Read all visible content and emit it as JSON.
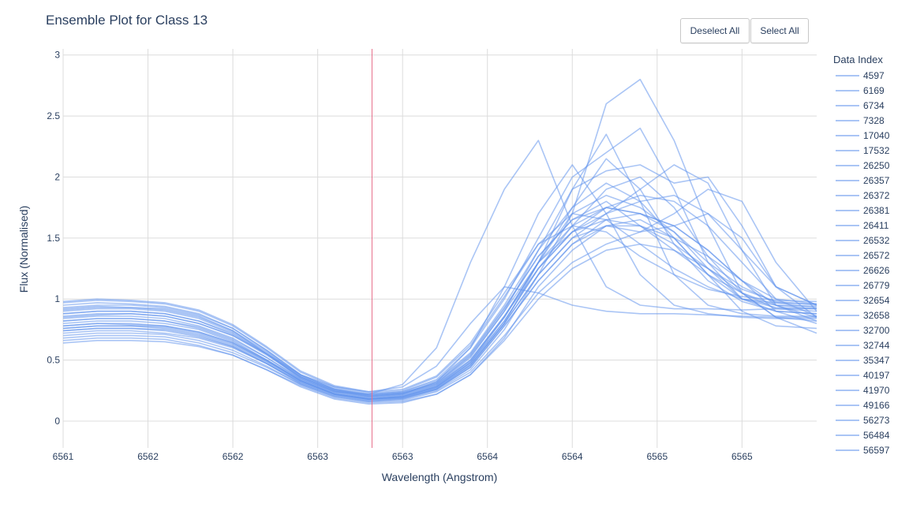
{
  "title": "Ensemble Plot for Class 13",
  "buttons": {
    "deselect_all": "Deselect All",
    "select_all": "Select All"
  },
  "legend": {
    "title": "Data Index",
    "items": [
      "4597",
      "6169",
      "6734",
      "7328",
      "17040",
      "17532",
      "26250",
      "26357",
      "26372",
      "26381",
      "26411",
      "26532",
      "26572",
      "26626",
      "26779",
      "32654",
      "32658",
      "32700",
      "32744",
      "35347",
      "40197",
      "41970",
      "49166",
      "56273",
      "56484",
      "56597"
    ]
  },
  "colors": {
    "series": "#6495ED",
    "vline": "#e8708c",
    "grid": "#dcdcdc",
    "text": "#2a3f5f"
  },
  "chart_data": {
    "type": "line",
    "title": "Ensemble Plot for Class 13",
    "xlabel": "Wavelength (Angstrom)",
    "ylabel": "Flux (Normalised)",
    "x_ticks": [
      {
        "value": 6561.0,
        "label": "6561"
      },
      {
        "value": 6561.5,
        "label": "6562"
      },
      {
        "value": 6562.0,
        "label": "6562"
      },
      {
        "value": 6562.5,
        "label": "6563"
      },
      {
        "value": 6563.0,
        "label": "6563"
      },
      {
        "value": 6563.5,
        "label": "6564"
      },
      {
        "value": 6564.0,
        "label": "6564"
      },
      {
        "value": 6564.5,
        "label": "6565"
      },
      {
        "value": 6565.0,
        "label": "6565"
      }
    ],
    "y_ticks": [
      {
        "value": 0,
        "label": "0"
      },
      {
        "value": 0.5,
        "label": "0.5"
      },
      {
        "value": 1,
        "label": "1"
      },
      {
        "value": 1.5,
        "label": "1.5"
      },
      {
        "value": 2,
        "label": "2"
      },
      {
        "value": 2.5,
        "label": "2.5"
      },
      {
        "value": 3,
        "label": "3"
      }
    ],
    "xlim": [
      6561.0,
      6565.44
    ],
    "ylim": [
      -0.22,
      3.05
    ],
    "grid": true,
    "legend_position": "right",
    "vertical_marker_x": 6562.82,
    "x": [
      6561.0,
      6561.2,
      6561.4,
      6561.6,
      6561.8,
      6562.0,
      6562.2,
      6562.4,
      6562.6,
      6562.8,
      6563.0,
      6563.2,
      6563.4,
      6563.6,
      6563.8,
      6564.0,
      6564.2,
      6564.4,
      6564.6,
      6564.8,
      6565.0,
      6565.2,
      6565.44
    ],
    "series": [
      {
        "values": [
          0.85,
          0.87,
          0.88,
          0.86,
          0.8,
          0.7,
          0.55,
          0.38,
          0.28,
          0.24,
          0.28,
          0.45,
          0.8,
          1.1,
          1.05,
          0.95,
          0.9,
          0.88,
          0.88,
          0.87,
          0.86,
          0.85,
          0.85
        ]
      },
      {
        "values": [
          0.92,
          0.94,
          0.93,
          0.92,
          0.86,
          0.74,
          0.55,
          0.35,
          0.24,
          0.22,
          0.3,
          0.6,
          1.3,
          1.9,
          2.3,
          1.6,
          1.1,
          0.95,
          0.92,
          0.92,
          0.91,
          0.92,
          0.92
        ]
      },
      {
        "values": [
          0.78,
          0.8,
          0.79,
          0.78,
          0.73,
          0.64,
          0.5,
          0.34,
          0.24,
          0.2,
          0.22,
          0.32,
          0.6,
          1.1,
          1.7,
          2.1,
          1.7,
          1.2,
          0.95,
          0.88,
          0.85,
          0.84,
          0.84
        ]
      },
      {
        "values": [
          0.7,
          0.72,
          0.72,
          0.71,
          0.66,
          0.58,
          0.45,
          0.3,
          0.2,
          0.16,
          0.18,
          0.26,
          0.45,
          0.8,
          1.3,
          1.9,
          2.35,
          1.8,
          1.2,
          0.95,
          0.88,
          0.86,
          0.86
        ]
      },
      {
        "values": [
          0.95,
          0.97,
          0.96,
          0.94,
          0.88,
          0.76,
          0.58,
          0.38,
          0.26,
          0.22,
          0.24,
          0.34,
          0.6,
          1.0,
          1.5,
          2.0,
          2.2,
          2.4,
          1.9,
          1.3,
          1.0,
          0.93,
          0.92
        ]
      },
      {
        "values": [
          0.82,
          0.84,
          0.84,
          0.82,
          0.76,
          0.66,
          0.5,
          0.33,
          0.22,
          0.18,
          0.2,
          0.28,
          0.48,
          0.85,
          1.3,
          1.6,
          1.75,
          1.7,
          1.55,
          1.25,
          1.0,
          0.9,
          0.88
        ]
      },
      {
        "values": [
          0.66,
          0.68,
          0.68,
          0.67,
          0.62,
          0.54,
          0.42,
          0.28,
          0.18,
          0.14,
          0.15,
          0.22,
          0.38,
          0.68,
          1.1,
          1.4,
          1.6,
          1.65,
          1.5,
          1.2,
          0.9,
          0.78,
          0.76
        ]
      },
      {
        "values": [
          0.88,
          0.9,
          0.9,
          0.88,
          0.82,
          0.72,
          0.55,
          0.36,
          0.25,
          0.2,
          0.22,
          0.3,
          0.52,
          0.9,
          1.4,
          1.9,
          2.05,
          2.1,
          1.95,
          2.0,
          1.6,
          1.1,
          0.95
        ]
      },
      {
        "values": [
          0.74,
          0.76,
          0.76,
          0.75,
          0.7,
          0.61,
          0.47,
          0.31,
          0.21,
          0.17,
          0.18,
          0.25,
          0.42,
          0.75,
          1.2,
          1.7,
          2.6,
          2.8,
          2.3,
          1.6,
          1.05,
          0.85,
          0.82
        ]
      },
      {
        "values": [
          0.9,
          0.92,
          0.92,
          0.9,
          0.84,
          0.73,
          0.56,
          0.37,
          0.26,
          0.21,
          0.23,
          0.31,
          0.54,
          0.92,
          1.35,
          1.65,
          1.8,
          1.6,
          1.4,
          1.2,
          1.05,
          0.95,
          0.92
        ]
      },
      {
        "values": [
          0.76,
          0.78,
          0.78,
          0.77,
          0.72,
          0.63,
          0.49,
          0.33,
          0.22,
          0.18,
          0.19,
          0.27,
          0.46,
          0.8,
          1.2,
          1.5,
          1.7,
          1.9,
          2.1,
          1.95,
          1.4,
          0.95,
          0.82
        ]
      },
      {
        "values": [
          0.86,
          0.88,
          0.88,
          0.86,
          0.8,
          0.7,
          0.54,
          0.36,
          0.25,
          0.2,
          0.22,
          0.3,
          0.5,
          0.86,
          1.25,
          1.55,
          1.7,
          1.8,
          1.85,
          1.7,
          1.4,
          1.1,
          0.95
        ]
      },
      {
        "values": [
          0.8,
          0.82,
          0.82,
          0.8,
          0.75,
          0.65,
          0.5,
          0.33,
          0.22,
          0.18,
          0.2,
          0.28,
          0.48,
          0.82,
          1.25,
          1.6,
          1.9,
          2.0,
          1.75,
          1.35,
          1.05,
          0.92,
          0.9
        ]
      },
      {
        "values": [
          0.72,
          0.74,
          0.74,
          0.72,
          0.68,
          0.6,
          0.47,
          0.32,
          0.22,
          0.18,
          0.19,
          0.26,
          0.44,
          0.78,
          1.15,
          1.45,
          1.65,
          1.7,
          1.6,
          1.4,
          1.15,
          0.9,
          0.8
        ]
      },
      {
        "values": [
          0.93,
          0.95,
          0.95,
          0.93,
          0.87,
          0.76,
          0.58,
          0.38,
          0.27,
          0.22,
          0.24,
          0.33,
          0.56,
          0.95,
          1.4,
          1.75,
          1.95,
          1.8,
          1.5,
          1.2,
          1.0,
          0.95,
          0.94
        ]
      },
      {
        "values": [
          0.68,
          0.7,
          0.7,
          0.69,
          0.64,
          0.56,
          0.44,
          0.3,
          0.2,
          0.16,
          0.17,
          0.24,
          0.4,
          0.7,
          1.05,
          1.3,
          1.45,
          1.55,
          1.6,
          1.7,
          1.5,
          1.1,
          0.85
        ]
      },
      {
        "values": [
          0.84,
          0.86,
          0.86,
          0.84,
          0.78,
          0.68,
          0.52,
          0.35,
          0.24,
          0.19,
          0.21,
          0.29,
          0.5,
          0.86,
          1.3,
          1.7,
          1.85,
          1.75,
          1.55,
          1.3,
          1.1,
          0.97,
          0.93
        ]
      },
      {
        "values": [
          0.97,
          0.99,
          0.98,
          0.96,
          0.9,
          0.78,
          0.6,
          0.4,
          0.28,
          0.23,
          0.25,
          0.36,
          0.62,
          1.02,
          1.45,
          1.7,
          1.65,
          1.45,
          1.25,
          1.1,
          1.0,
          0.97,
          0.96
        ]
      },
      {
        "values": [
          0.78,
          0.8,
          0.8,
          0.78,
          0.73,
          0.64,
          0.49,
          0.33,
          0.23,
          0.18,
          0.2,
          0.28,
          0.47,
          0.82,
          1.25,
          1.55,
          1.75,
          1.85,
          1.8,
          1.6,
          1.3,
          1.0,
          0.86
        ]
      },
      {
        "values": [
          0.88,
          0.9,
          0.9,
          0.88,
          0.82,
          0.71,
          0.55,
          0.36,
          0.25,
          0.21,
          0.23,
          0.31,
          0.53,
          0.9,
          1.3,
          1.55,
          1.65,
          1.6,
          1.45,
          1.25,
          1.08,
          0.98,
          0.95
        ]
      },
      {
        "values": [
          0.74,
          0.76,
          0.76,
          0.74,
          0.69,
          0.61,
          0.47,
          0.31,
          0.21,
          0.17,
          0.19,
          0.26,
          0.44,
          0.78,
          1.15,
          1.45,
          1.6,
          1.6,
          1.5,
          1.35,
          1.15,
          0.95,
          0.85
        ]
      },
      {
        "values": [
          0.91,
          0.93,
          0.93,
          0.91,
          0.85,
          0.74,
          0.57,
          0.37,
          0.26,
          0.21,
          0.23,
          0.32,
          0.55,
          0.93,
          1.35,
          1.65,
          1.75,
          1.7,
          1.6,
          1.4,
          1.15,
          1.0,
          0.96
        ]
      },
      {
        "values": [
          0.64,
          0.66,
          0.66,
          0.65,
          0.61,
          0.54,
          0.42,
          0.29,
          0.19,
          0.15,
          0.16,
          0.22,
          0.38,
          0.66,
          1.0,
          1.25,
          1.4,
          1.45,
          1.4,
          1.25,
          1.05,
          0.85,
          0.72
        ]
      },
      {
        "values": [
          0.98,
          1.0,
          0.99,
          0.97,
          0.91,
          0.79,
          0.61,
          0.41,
          0.29,
          0.24,
          0.26,
          0.37,
          0.64,
          1.05,
          1.45,
          1.6,
          1.55,
          1.35,
          1.2,
          1.08,
          1.02,
          0.99,
          0.98
        ]
      },
      {
        "values": [
          0.82,
          0.84,
          0.84,
          0.82,
          0.77,
          0.67,
          0.52,
          0.34,
          0.23,
          0.19,
          0.21,
          0.29,
          0.49,
          0.85,
          1.3,
          1.75,
          2.15,
          1.9,
          1.45,
          1.15,
          0.98,
          0.9,
          0.88
        ]
      },
      {
        "values": [
          0.76,
          0.78,
          0.78,
          0.76,
          0.71,
          0.62,
          0.48,
          0.32,
          0.22,
          0.18,
          0.2,
          0.27,
          0.46,
          0.8,
          1.2,
          1.5,
          1.6,
          1.55,
          1.7,
          1.9,
          1.8,
          1.3,
          0.9
        ]
      }
    ]
  }
}
